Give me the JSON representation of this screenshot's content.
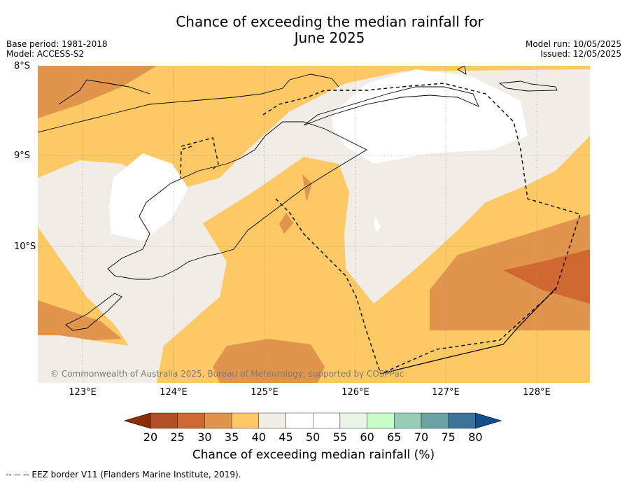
{
  "title": {
    "line1": "Chance of exceeding the median rainfall for",
    "line2": "June 2025"
  },
  "meta_left": {
    "base_period": "Base period: 1981-2018",
    "model": "Model: ACCESS-S2"
  },
  "meta_right": {
    "model_run": "Model run: 10/05/2025",
    "issued": "Issued: 12/05/2025"
  },
  "lat_labels": [
    "8°S",
    "9°S",
    "10°S"
  ],
  "lon_labels": [
    "123°E",
    "124°E",
    "125°E",
    "126°E",
    "127°E",
    "128°E"
  ],
  "copyright": "© Commonwealth of Australia 2025, Bureau of Meteorology, supported by COSPPac",
  "colorbar": {
    "ticks": [
      "20",
      "25",
      "30",
      "35",
      "40",
      "45",
      "50",
      "55",
      "60",
      "65",
      "70",
      "75",
      "80"
    ],
    "colors": [
      "#8c2d04",
      "#b44f25",
      "#cf6931",
      "#e0944c",
      "#fdc964",
      "#f1ece6",
      "#ffffff",
      "#ffffff",
      "#e9f5e6",
      "#c7fdc7",
      "#96cdb4",
      "#6aa3a6",
      "#3e7399",
      "#114e8a"
    ],
    "label": "Chance of exceeding median rainfall (%)"
  },
  "footer": "--  --  -- EEZ border V11 (Flanders Marine Institute, 2019).",
  "map_colors": {
    "gold": "#fdc964",
    "orange": "#e0944c",
    "deep_orange": "#cf6931",
    "neutral": "#f1ece6",
    "white": "#ffffff"
  }
}
